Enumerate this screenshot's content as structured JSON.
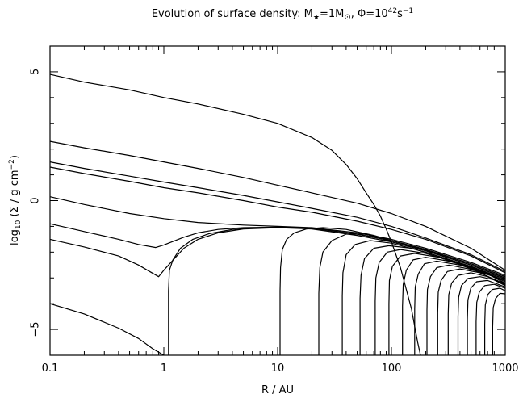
{
  "chart_data": {
    "type": "line",
    "title_prefix": "Evolution of surface density: M",
    "title_star": "★",
    "title_mid1": "=1M",
    "title_sun": "⊙",
    "title_mid2": ", Φ=10",
    "title_exp": "42",
    "title_suffix": "s",
    "title_exp2": "−1",
    "xlabel": "R / AU",
    "ylabel_prefix": "log",
    "ylabel_sub": "10",
    "ylabel_mid": " (Σ / g cm",
    "ylabel_exp": "−2",
    "ylabel_suffix": ")",
    "xscale": "log",
    "xlim": [
      0.1,
      1000
    ],
    "ylim": [
      -6,
      6
    ],
    "xticks": [
      {
        "value": 0.1,
        "label": "0.1"
      },
      {
        "value": 1,
        "label": "1"
      },
      {
        "value": 10,
        "label": "10"
      },
      {
        "value": 100,
        "label": "100"
      },
      {
        "value": 1000,
        "label": "1000"
      }
    ],
    "yticks": [
      {
        "value": -5,
        "label": "−5"
      },
      {
        "value": 0,
        "label": "0"
      },
      {
        "value": 5,
        "label": "5"
      }
    ],
    "grid": false,
    "series": [
      {
        "x": [
          0.1,
          0.2,
          0.5,
          1,
          2,
          5,
          10,
          20,
          30,
          40,
          50,
          60,
          70,
          80,
          90,
          100,
          120,
          150,
          170,
          180
        ],
        "y": [
          4.9,
          4.6,
          4.3,
          4.0,
          3.75,
          3.35,
          3.0,
          2.45,
          1.95,
          1.4,
          0.85,
          0.3,
          -0.15,
          -0.6,
          -1.1,
          -1.6,
          -2.6,
          -4.2,
          -5.5,
          -6.0
        ]
      },
      {
        "x": [
          0.1,
          0.2,
          0.5,
          1,
          2,
          5,
          10,
          20,
          50,
          100,
          200,
          500,
          1000
        ],
        "y": [
          2.3,
          2.05,
          1.75,
          1.5,
          1.25,
          0.9,
          0.6,
          0.3,
          -0.1,
          -0.5,
          -1.0,
          -1.85,
          -2.7
        ]
      },
      {
        "x": [
          0.1,
          0.2,
          0.5,
          1,
          2,
          5,
          10,
          20,
          50,
          100,
          200,
          500,
          1000
        ],
        "y": [
          1.5,
          1.25,
          0.95,
          0.72,
          0.5,
          0.2,
          -0.05,
          -0.3,
          -0.65,
          -1.0,
          -1.45,
          -2.1,
          -2.75
        ]
      },
      {
        "x": [
          0.1,
          0.2,
          0.5,
          1,
          2,
          5,
          10,
          20,
          50,
          100,
          200,
          500,
          1000
        ],
        "y": [
          1.3,
          1.05,
          0.75,
          0.5,
          0.3,
          0.0,
          -0.25,
          -0.45,
          -0.8,
          -1.12,
          -1.5,
          -2.15,
          -2.8
        ]
      },
      {
        "x": [
          0.1,
          0.2,
          0.5,
          1,
          2,
          5,
          10,
          20,
          50,
          100,
          200,
          500,
          1000
        ],
        "y": [
          0.15,
          -0.15,
          -0.5,
          -0.7,
          -0.85,
          -0.95,
          -1.0,
          -1.05,
          -1.25,
          -1.5,
          -1.85,
          -2.4,
          -2.9
        ]
      },
      {
        "x": [
          0.1,
          0.2,
          0.4,
          0.6,
          0.85,
          1,
          1.5,
          2,
          3,
          5,
          10,
          20,
          50,
          100,
          200,
          500,
          1000
        ],
        "y": [
          -0.9,
          -1.2,
          -1.5,
          -1.7,
          -1.82,
          -1.72,
          -1.42,
          -1.25,
          -1.12,
          -1.05,
          -1.03,
          -1.07,
          -1.3,
          -1.55,
          -1.9,
          -2.45,
          -2.95
        ]
      },
      {
        "x": [
          0.1,
          0.2,
          0.4,
          0.6,
          0.75,
          0.9,
          1,
          1.5,
          2,
          3,
          5,
          10,
          20,
          50,
          100,
          200,
          500,
          1000
        ],
        "y": [
          -1.5,
          -1.8,
          -2.15,
          -2.5,
          -2.75,
          -2.95,
          -2.7,
          -1.85,
          -1.5,
          -1.25,
          -1.1,
          -1.05,
          -1.1,
          -1.35,
          -1.6,
          -1.95,
          -2.5,
          -3.0
        ]
      },
      {
        "x": [
          0.1,
          0.2,
          0.4,
          0.6,
          0.8,
          1
        ],
        "y": [
          -4.0,
          -4.4,
          -4.95,
          -5.35,
          -5.75,
          -6.0
        ]
      },
      {
        "x": [
          1.1,
          1.1,
          1.12,
          1.2,
          1.4,
          1.8,
          2.5,
          4,
          7,
          10,
          20,
          50,
          100,
          200,
          500,
          1000
        ],
        "y": [
          -6.0,
          -3.5,
          -2.7,
          -2.3,
          -1.85,
          -1.5,
          -1.28,
          -1.12,
          -1.05,
          -1.03,
          -1.07,
          -1.3,
          -1.55,
          -1.9,
          -2.45,
          -2.95
        ]
      },
      {
        "x": [
          10.5,
          10.5,
          10.6,
          11,
          12,
          14,
          18,
          25,
          40,
          70,
          100,
          200,
          500,
          1000
        ],
        "y": [
          -6.0,
          -3.5,
          -2.6,
          -1.9,
          -1.5,
          -1.25,
          -1.1,
          -1.05,
          -1.12,
          -1.35,
          -1.55,
          -1.92,
          -2.5,
          -3.0
        ]
      },
      {
        "x": [
          23,
          23,
          23.5,
          25,
          30,
          40,
          60,
          100,
          200,
          500,
          1000
        ],
        "y": [
          -6.0,
          -3.6,
          -2.6,
          -2.0,
          -1.55,
          -1.3,
          -1.3,
          -1.6,
          -1.95,
          -2.5,
          -3.0
        ]
      },
      {
        "x": [
          37,
          37,
          37.5,
          40,
          48,
          65,
          100,
          200,
          500,
          1000
        ],
        "y": [
          -6.0,
          -3.7,
          -2.8,
          -2.1,
          -1.7,
          -1.55,
          -1.65,
          -2.0,
          -2.55,
          -3.05
        ]
      },
      {
        "x": [
          53,
          53,
          54,
          58,
          70,
          95,
          150,
          300,
          600,
          1000
        ],
        "y": [
          -6.0,
          -3.8,
          -2.9,
          -2.25,
          -1.85,
          -1.75,
          -1.85,
          -2.25,
          -2.7,
          -3.05
        ]
      },
      {
        "x": [
          72,
          72,
          73,
          78,
          92,
          120,
          200,
          400,
          1000
        ],
        "y": [
          -6.0,
          -3.9,
          -3.0,
          -2.4,
          -2.0,
          -1.9,
          -2.05,
          -2.45,
          -3.1
        ]
      },
      {
        "x": [
          95,
          95,
          96,
          102,
          120,
          160,
          260,
          500,
          1000
        ],
        "y": [
          -6.0,
          -4.0,
          -3.1,
          -2.55,
          -2.15,
          -2.05,
          -2.2,
          -2.6,
          -3.1
        ]
      },
      {
        "x": [
          125,
          125,
          127,
          135,
          155,
          200,
          320,
          600,
          1000
        ],
        "y": [
          -6.0,
          -4.1,
          -3.25,
          -2.7,
          -2.3,
          -2.2,
          -2.35,
          -2.7,
          -3.15
        ]
      },
      {
        "x": [
          160,
          160,
          162,
          172,
          195,
          250,
          400,
          700,
          1000
        ],
        "y": [
          -6.0,
          -4.2,
          -3.35,
          -2.85,
          -2.45,
          -2.35,
          -2.5,
          -2.85,
          -3.2
        ]
      },
      {
        "x": [
          205,
          205,
          207,
          220,
          250,
          320,
          480,
          800,
          1000
        ],
        "y": [
          -6.0,
          -4.25,
          -3.45,
          -2.95,
          -2.6,
          -2.5,
          -2.65,
          -2.95,
          -3.25
        ]
      },
      {
        "x": [
          255,
          255,
          258,
          273,
          310,
          400,
          600,
          1000
        ],
        "y": [
          -6.0,
          -4.35,
          -3.55,
          -3.1,
          -2.75,
          -2.65,
          -2.8,
          -3.25
        ]
      },
      {
        "x": [
          315,
          315,
          319,
          338,
          385,
          500,
          700,
          1000
        ],
        "y": [
          -6.0,
          -4.4,
          -3.65,
          -3.2,
          -2.9,
          -2.8,
          -2.95,
          -3.3
        ]
      },
      {
        "x": [
          385,
          385,
          390,
          412,
          470,
          600,
          850,
          1000
        ],
        "y": [
          -6.0,
          -4.5,
          -3.75,
          -3.3,
          -3.02,
          -2.95,
          -3.1,
          -3.3
        ]
      },
      {
        "x": [
          465,
          465,
          470,
          498,
          560,
          700,
          1000
        ],
        "y": [
          -6.0,
          -4.6,
          -3.85,
          -3.4,
          -3.15,
          -3.1,
          -3.35
        ]
      },
      {
        "x": [
          555,
          555,
          562,
          592,
          660,
          800,
          1000
        ],
        "y": [
          -6.0,
          -4.7,
          -3.95,
          -3.55,
          -3.3,
          -3.25,
          -3.4
        ]
      },
      {
        "x": [
          660,
          660,
          668,
          702,
          770,
          900,
          1000
        ],
        "y": [
          -6.0,
          -4.8,
          -4.05,
          -3.65,
          -3.45,
          -3.4,
          -3.5
        ]
      },
      {
        "x": [
          775,
          775,
          784,
          822,
          900,
          1000
        ],
        "y": [
          -6.0,
          -4.9,
          -4.15,
          -3.8,
          -3.6,
          -3.62
        ]
      }
    ]
  }
}
